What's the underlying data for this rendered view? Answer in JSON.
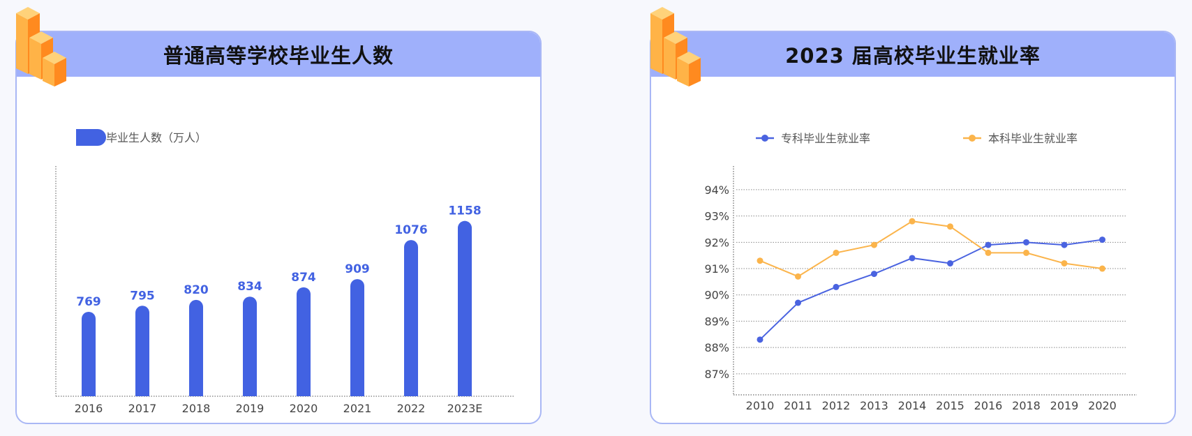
{
  "colors": {
    "bar": "#4262e2",
    "line_zhuanke": "#4a63e0",
    "line_benke": "#fbb44b",
    "header": "#9fb0fb",
    "border": "#a9b7f5"
  },
  "left_panel": {
    "title": "普通高等学校毕业生人数"
  },
  "right_panel": {
    "title": "2023 届高校毕业生就业率"
  },
  "chart_data": [
    {
      "type": "bar",
      "title": "普通高等学校毕业生人数",
      "categories": [
        "2016",
        "2017",
        "2018",
        "2019",
        "2020",
        "2021",
        "2022",
        "2023E"
      ],
      "series": [
        {
          "name": "毕业生人数（万人）",
          "values": [
            769,
            795,
            820,
            834,
            874,
            909,
            1076,
            1158
          ]
        }
      ],
      "legend": "top-left",
      "grid": false
    },
    {
      "type": "line",
      "title": "2023 届高校毕业生就业率",
      "categories": [
        "2010",
        "2011",
        "2012",
        "2013",
        "2014",
        "2015",
        "2016",
        "2018",
        "2019",
        "2020"
      ],
      "series": [
        {
          "name": "专科毕业生就业率",
          "values": [
            88.3,
            89.7,
            90.3,
            90.8,
            91.4,
            91.2,
            91.9,
            92.0,
            91.9,
            92.1
          ]
        },
        {
          "name": "本科毕业生就业率",
          "values": [
            91.3,
            90.7,
            91.6,
            91.9,
            92.8,
            92.6,
            91.6,
            91.6,
            91.2,
            91.0
          ]
        }
      ],
      "y_ticks": [
        "87%",
        "88%",
        "89%",
        "90%",
        "91%",
        "92%",
        "93%",
        "94%"
      ],
      "ylim": [
        86.2,
        94.9
      ],
      "legend": "top",
      "grid": true
    }
  ]
}
